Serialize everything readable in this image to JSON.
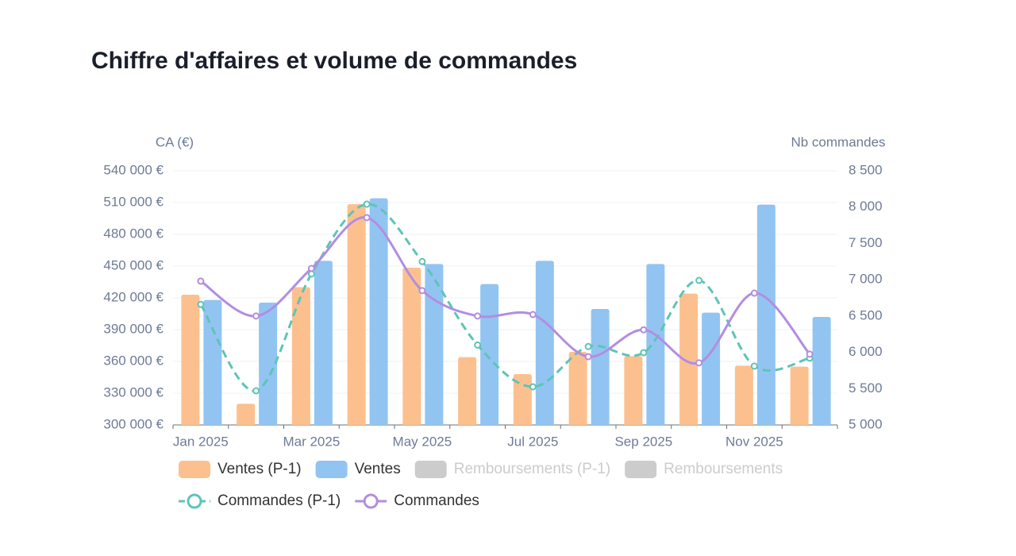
{
  "chart_data": {
    "type": "bar-line",
    "title": "Chiffre d'affaires et volume de commandes",
    "ylabel": "CA (€)",
    "y2label": "Nb commandes",
    "categories": [
      "Jan 2025",
      null,
      "Mar 2025",
      null,
      "May 2025",
      null,
      "Jul 2025",
      null,
      "Sep 2025",
      null,
      "Nov 2025",
      null
    ],
    "ylim": [
      300000,
      540000
    ],
    "yticks": [
      {
        "value": 300000,
        "label": "300 000 €"
      },
      {
        "value": 330000,
        "label": "330 000 €"
      },
      {
        "value": 360000,
        "label": "360 000 €"
      },
      {
        "value": 390000,
        "label": "390 000 €"
      },
      {
        "value": 420000,
        "label": "420 000 €"
      },
      {
        "value": 450000,
        "label": "450 000 €"
      },
      {
        "value": 480000,
        "label": "480 000 €"
      },
      {
        "value": 510000,
        "label": "510 000 €"
      },
      {
        "value": 540000,
        "label": "540 000 €"
      }
    ],
    "y2lim": [
      5000,
      8500
    ],
    "y2ticks": [
      {
        "value": 5000,
        "label": "5 000"
      },
      {
        "value": 5500,
        "label": "5 500"
      },
      {
        "value": 6000,
        "label": "6 000"
      },
      {
        "value": 6500,
        "label": "6 500"
      },
      {
        "value": 7000,
        "label": "7 000"
      },
      {
        "value": 7500,
        "label": "7 500"
      },
      {
        "value": 8000,
        "label": "8 000"
      },
      {
        "value": 8500,
        "label": "8 500"
      }
    ],
    "grid": true,
    "series": [
      {
        "name": "Ventes (P-1)",
        "type": "bar",
        "color": "#fcc08f",
        "values": [
          423000,
          320000,
          430000,
          508500,
          448500,
          364000,
          348000,
          369000,
          365000,
          424000,
          356000,
          355000
        ]
      },
      {
        "name": "Ventes",
        "type": "bar",
        "color": "#92c4f2",
        "values": [
          418000,
          415500,
          455000,
          514000,
          452000,
          433000,
          455000,
          409500,
          452000,
          406000,
          508000,
          402000
        ]
      },
      {
        "name": "Remboursements (P-1)",
        "type": "bar",
        "color": "#cccccc",
        "hidden": true
      },
      {
        "name": "Remboursements",
        "type": "bar",
        "color": "#cccccc",
        "hidden": true
      },
      {
        "name": "Commandes (P-1)",
        "type": "line",
        "axis": "y2",
        "color": "#5ec4b6",
        "dashed": true,
        "values": [
          6660,
          5470,
          7080,
          8040,
          7250,
          6100,
          5525,
          6080,
          5995,
          6990,
          5810,
          5920
        ]
      },
      {
        "name": "Commandes",
        "type": "line",
        "axis": "y2",
        "color": "#b28ee0",
        "values": [
          6980,
          6500,
          7155,
          7855,
          6850,
          6500,
          6520,
          5940,
          6310,
          5855,
          6815,
          5975
        ]
      }
    ]
  }
}
